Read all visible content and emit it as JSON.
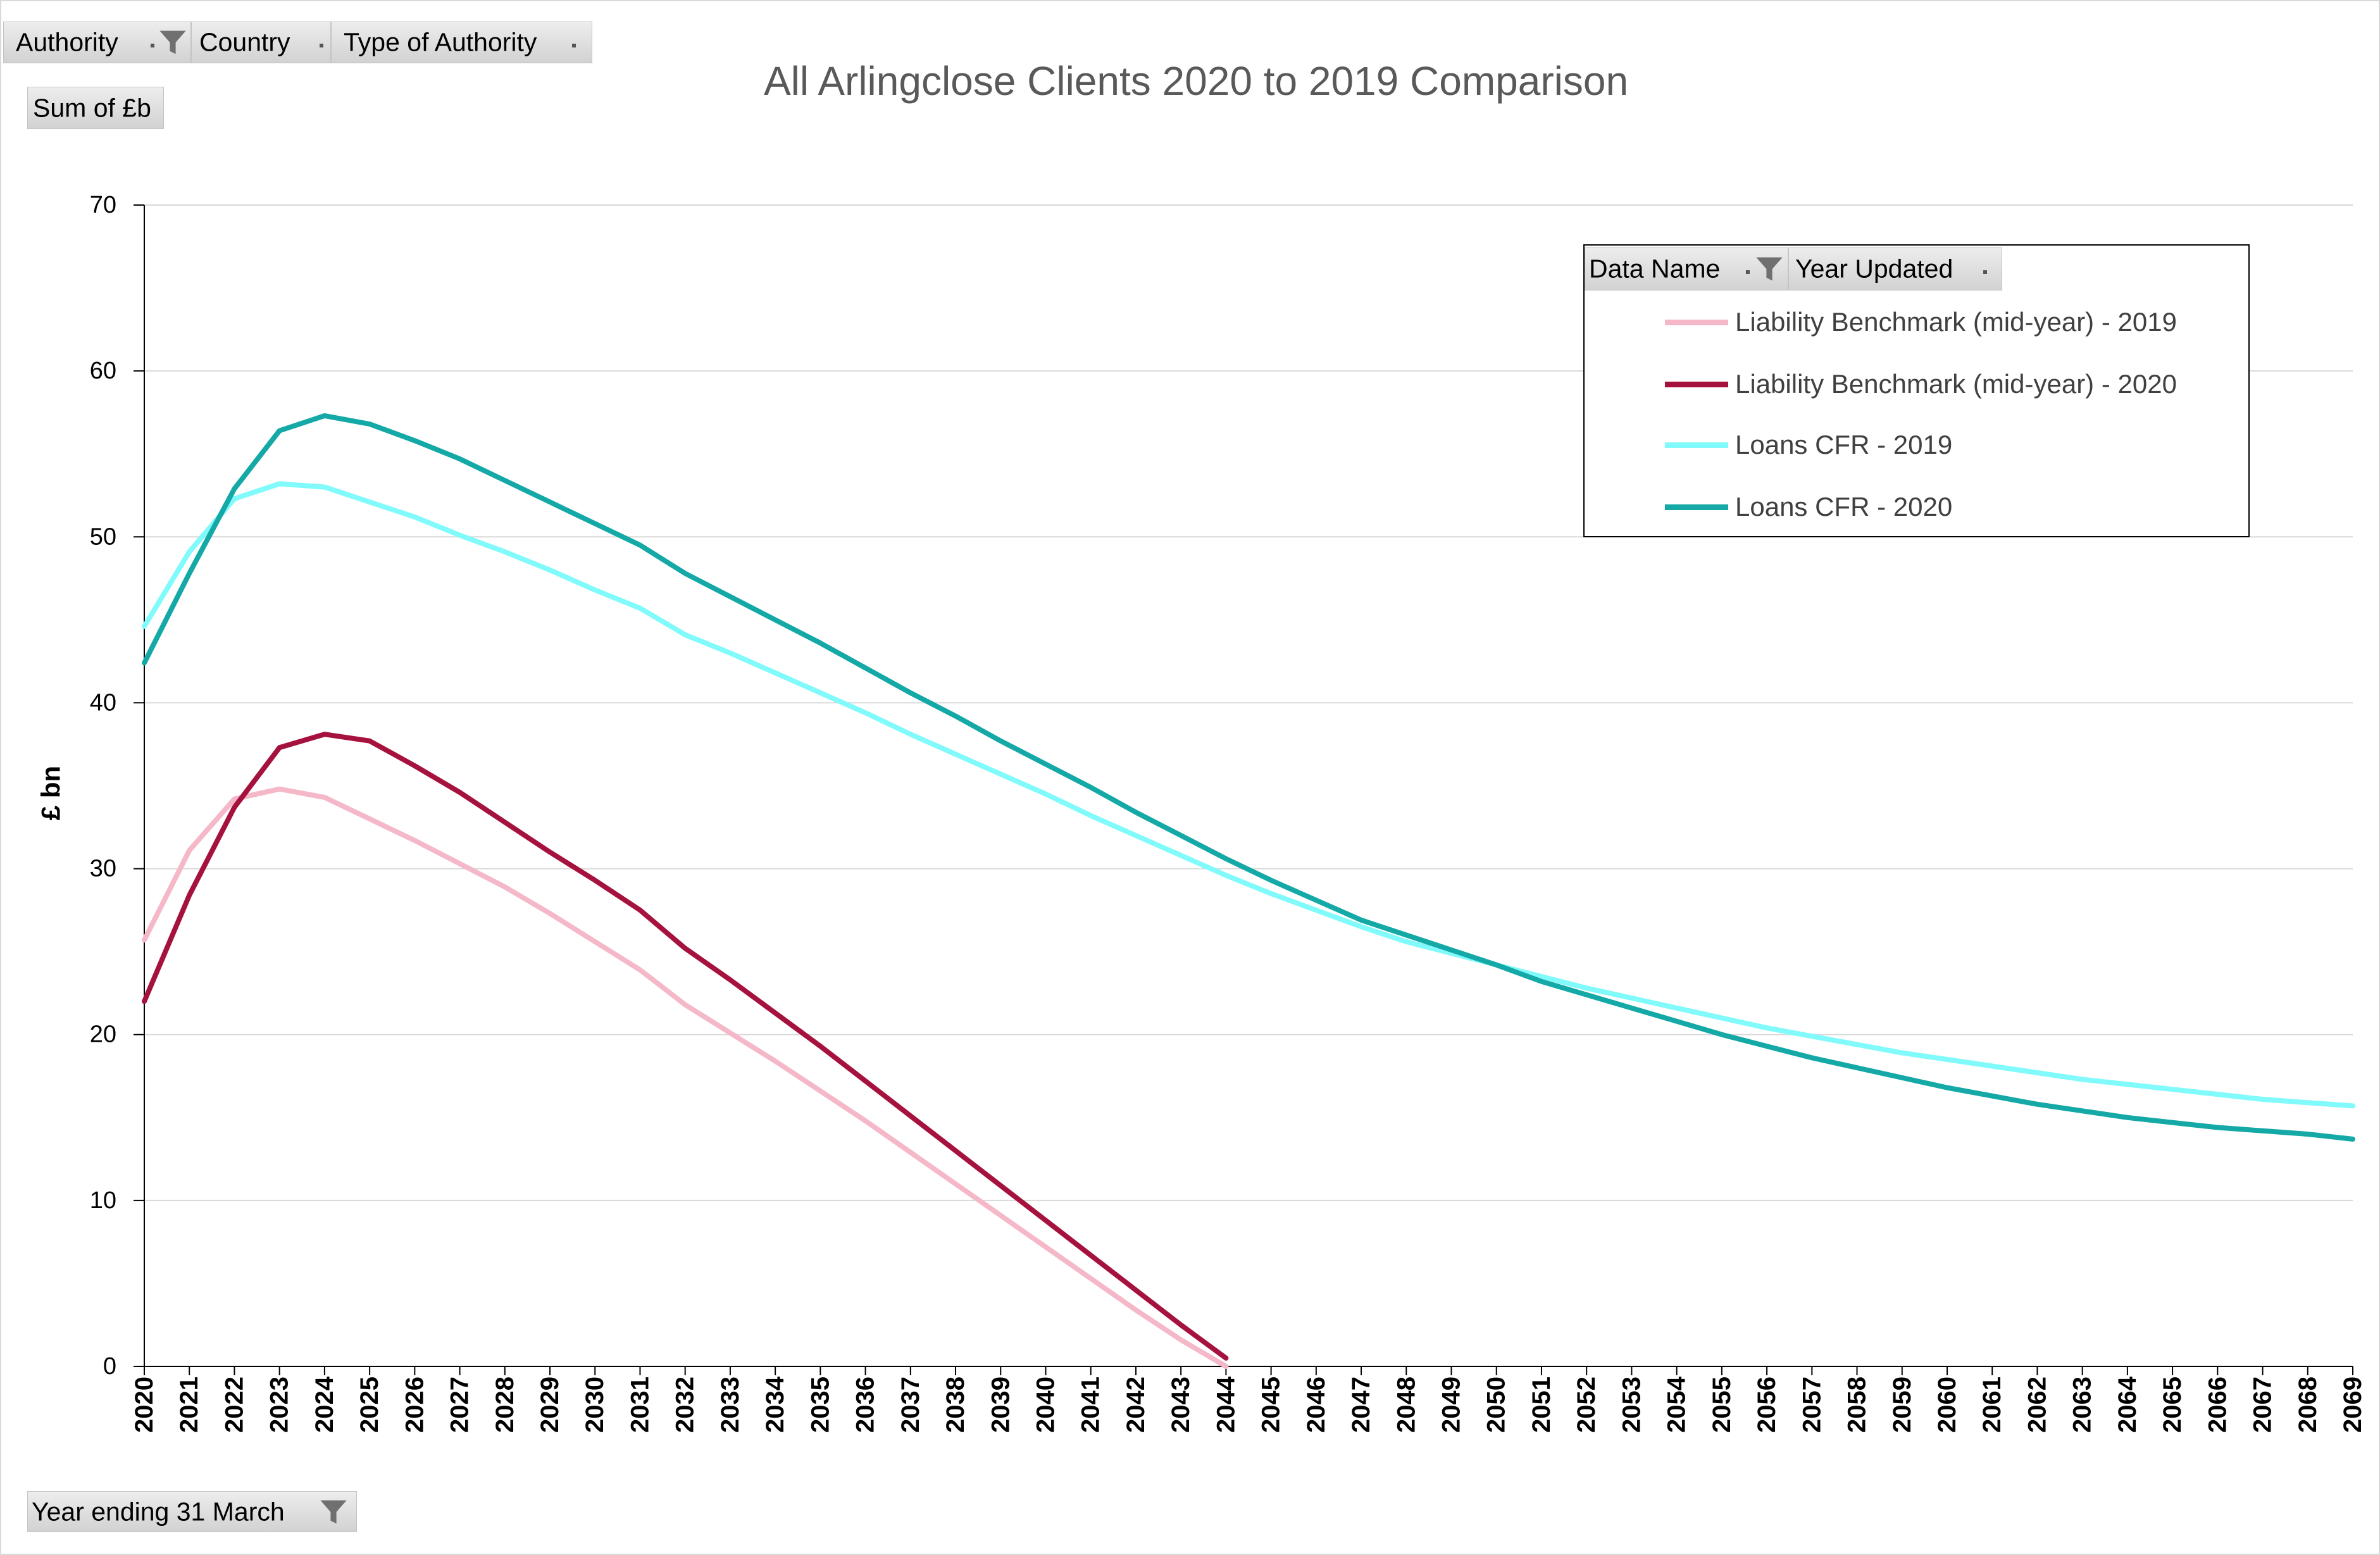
{
  "pivot": {
    "filter_fields": [
      {
        "label": "Authority",
        "icon": "filter-icon"
      },
      {
        "label": "Country"
      },
      {
        "label": "Type of Authority"
      }
    ],
    "value_field": "Sum of £b",
    "legend_fields": [
      {
        "label": "Data Name",
        "icon": "filter-icon"
      },
      {
        "label": "Year Updated"
      }
    ],
    "axis_field": {
      "label": "Year ending 31 March",
      "icon": "filter-icon"
    }
  },
  "colors": {
    "gridline": "#D9D9D9",
    "title": "#595959",
    "legend_text": "#404040",
    "button": "#DCDCDC"
  },
  "chart_data": {
    "type": "line",
    "title": "All Arlingclose Clients 2020 to 2019 Comparison",
    "ylabel": "£ bn",
    "ylim": [
      0,
      70
    ],
    "yticks": [
      0,
      10,
      20,
      30,
      40,
      50,
      60,
      70
    ],
    "grid": true,
    "legend_position": "top-right",
    "categories": [
      "2020",
      "2021",
      "2022",
      "2023",
      "2024",
      "2025",
      "2026",
      "2027",
      "2028",
      "2029",
      "2030",
      "2031",
      "2032",
      "2033",
      "2034",
      "2035",
      "2036",
      "2037",
      "2038",
      "2039",
      "2040",
      "2041",
      "2042",
      "2043",
      "2044",
      "2045",
      "2046",
      "2047",
      "2048",
      "2049",
      "2050",
      "2051",
      "2052",
      "2053",
      "2054",
      "2055",
      "2056",
      "2057",
      "2058",
      "2059",
      "2060",
      "2061",
      "2062",
      "2063",
      "2064",
      "2065",
      "2066",
      "2067",
      "2068",
      "2069"
    ],
    "series": [
      {
        "name": "Liability Benchmark (mid-year) - 2019",
        "color": "#F4B8C8",
        "values": [
          25.7,
          31.1,
          34.2,
          34.8,
          34.3,
          33.0,
          31.7,
          30.3,
          28.9,
          27.3,
          25.6,
          23.9,
          21.8,
          20.1,
          18.4,
          16.6,
          14.8,
          12.9,
          11.0,
          9.1,
          7.2,
          5.3,
          3.4,
          1.6,
          0.0,
          null,
          null,
          null,
          null,
          null,
          null,
          null,
          null,
          null,
          null,
          null,
          null,
          null,
          null,
          null,
          null,
          null,
          null,
          null,
          null,
          null,
          null,
          null,
          null,
          null
        ]
      },
      {
        "name": "Liability Benchmark (mid-year) - 2020",
        "color": "#A6123E",
        "values": [
          22.0,
          28.4,
          33.7,
          37.3,
          38.1,
          37.7,
          36.2,
          34.6,
          32.8,
          31.0,
          29.3,
          27.5,
          25.2,
          23.3,
          21.3,
          19.3,
          17.2,
          15.1,
          13.0,
          10.9,
          8.8,
          6.7,
          4.6,
          2.5,
          0.5,
          null,
          null,
          null,
          null,
          null,
          null,
          null,
          null,
          null,
          null,
          null,
          null,
          null,
          null,
          null,
          null,
          null,
          null,
          null,
          null,
          null,
          null,
          null,
          null,
          null
        ]
      },
      {
        "name": "Loans CFR - 2019",
        "color": "#80FAFA",
        "values": [
          44.6,
          49.1,
          52.3,
          53.2,
          53.0,
          52.1,
          51.2,
          50.1,
          49.1,
          48.0,
          46.8,
          45.7,
          44.1,
          43.0,
          41.8,
          40.6,
          39.4,
          38.1,
          36.9,
          35.7,
          34.5,
          33.2,
          32.0,
          30.8,
          29.6,
          28.5,
          27.5,
          26.5,
          25.6,
          24.9,
          24.2,
          23.5,
          22.8,
          22.2,
          21.6,
          21.0,
          20.4,
          19.9,
          19.4,
          18.9,
          18.5,
          18.1,
          17.7,
          17.3,
          17.0,
          16.7,
          16.4,
          16.1,
          15.9,
          15.7
        ]
      },
      {
        "name": "Loans CFR - 2020",
        "color": "#14A9A6",
        "values": [
          42.4,
          47.8,
          52.9,
          56.4,
          57.3,
          56.8,
          55.8,
          54.7,
          53.4,
          52.1,
          50.8,
          49.5,
          47.8,
          46.4,
          45.0,
          43.6,
          42.1,
          40.6,
          39.2,
          37.7,
          36.3,
          34.9,
          33.4,
          32.0,
          30.6,
          29.3,
          28.1,
          26.9,
          26.0,
          25.1,
          24.2,
          23.2,
          22.4,
          21.6,
          20.8,
          20.0,
          19.3,
          18.6,
          18.0,
          17.4,
          16.8,
          16.3,
          15.8,
          15.4,
          15.0,
          14.7,
          14.4,
          14.2,
          14.0,
          13.7
        ]
      }
    ]
  }
}
